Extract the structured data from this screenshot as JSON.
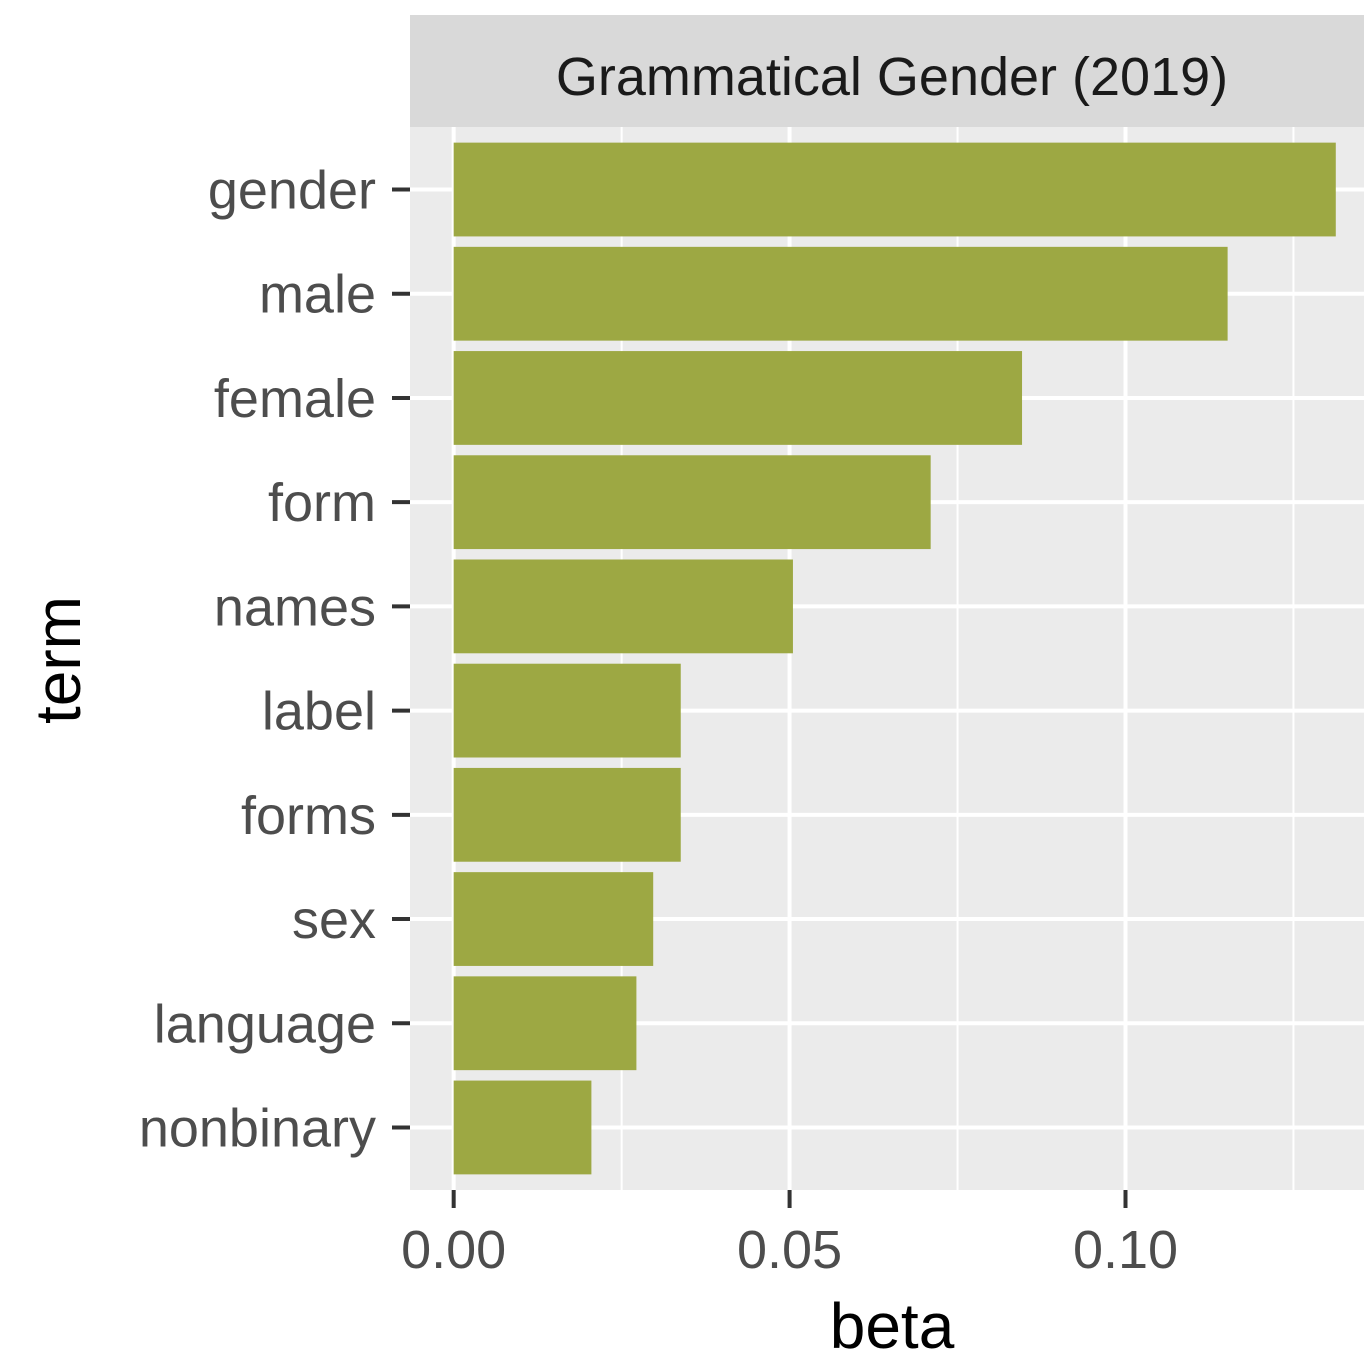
{
  "chart_data": {
    "type": "bar",
    "orientation": "horizontal",
    "panel_title": "Grammatical Gender (2019)",
    "categories": [
      "gender",
      "male",
      "female",
      "form",
      "names",
      "label",
      "forms",
      "sex",
      "language",
      "nonbinary"
    ],
    "values": [
      0.1313,
      0.1152,
      0.0846,
      0.071,
      0.0505,
      0.0338,
      0.0338,
      0.0297,
      0.0272,
      0.0205
    ],
    "xlabel": "beta",
    "ylabel": "term",
    "xlim": [
      -0.0065,
      0.1355
    ],
    "x_ticks": [
      0.0,
      0.05,
      0.1
    ],
    "x_tick_labels": [
      "0.00",
      "0.05",
      "0.10"
    ],
    "grid": true,
    "legend": false,
    "colors": {
      "bar": "#9da843",
      "panel_background": "#ebebeb",
      "strip_background": "#d9d9d9",
      "grid": "#ffffff"
    }
  }
}
